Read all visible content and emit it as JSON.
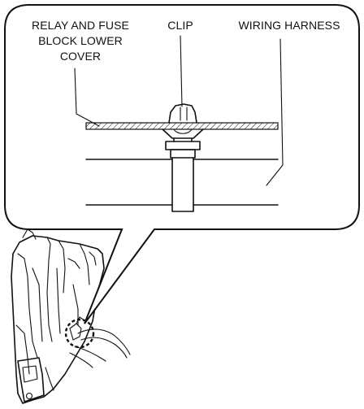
{
  "labels": {
    "relay_line1": "RELAY AND FUSE",
    "relay_line2": "BLOCK LOWER",
    "relay_line3": "COVER",
    "clip": "CLIP",
    "wiring_harness": "WIRING HARNESS"
  },
  "callout": {
    "line_color": "#111111",
    "fill_color": "#ffffff"
  }
}
